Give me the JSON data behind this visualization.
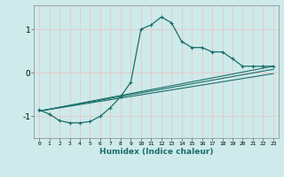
{
  "xlabel": "Humidex (Indice chaleur)",
  "ylabel": "",
  "xlim": [
    -0.5,
    23.5
  ],
  "ylim": [
    -1.5,
    1.55
  ],
  "bg_color": "#ceeaea",
  "grid_color": "#b8d8d8",
  "line_color": "#1a6e6a",
  "xticks": [
    0,
    1,
    2,
    3,
    4,
    5,
    6,
    7,
    8,
    9,
    10,
    11,
    12,
    13,
    14,
    15,
    16,
    17,
    18,
    19,
    20,
    21,
    22,
    23
  ],
  "yticks": [
    -1,
    0,
    1
  ],
  "series": [
    {
      "x": [
        0,
        1,
        2,
        3,
        4,
        5,
        6,
        7,
        8,
        9,
        10,
        11,
        12,
        13,
        14,
        15,
        16,
        17,
        18,
        19,
        20,
        21,
        22,
        23
      ],
      "y": [
        -0.85,
        -0.95,
        -1.1,
        -1.15,
        -1.15,
        -1.12,
        -1.0,
        -0.8,
        -0.55,
        -0.22,
        1.0,
        1.1,
        1.28,
        1.15,
        0.72,
        0.58,
        0.58,
        0.48,
        0.48,
        0.32,
        0.15,
        0.15,
        0.15,
        0.15
      ],
      "marker": "+"
    },
    {
      "x": [
        0,
        23
      ],
      "y": [
        -0.88,
        0.15
      ],
      "marker": null
    },
    {
      "x": [
        0,
        23
      ],
      "y": [
        -0.88,
        0.08
      ],
      "marker": null
    },
    {
      "x": [
        0,
        23
      ],
      "y": [
        -0.88,
        -0.02
      ],
      "marker": null
    }
  ]
}
